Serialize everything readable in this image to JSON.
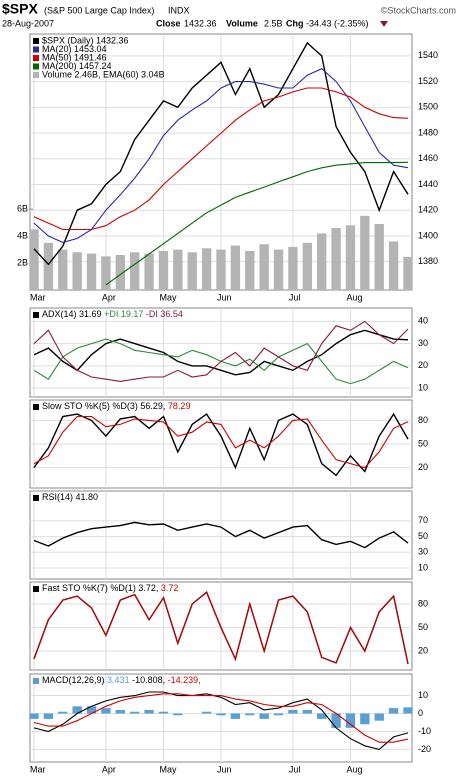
{
  "header": {
    "symbol": "$SPX",
    "name": "(S&P 500 Large Cap Index)",
    "exchange": "INDX",
    "credit": "©StockCharts.com",
    "date": "28-Aug-2007",
    "close_label": "Close",
    "close": "1432.36",
    "volume_label": "Volume",
    "volume": "2.5B",
    "chg_label": "Chg",
    "chg": "-34.43 (-2.35%)"
  },
  "chart_data": [
    {
      "type": "line",
      "grid": true,
      "categories": [
        "Mar",
        null,
        null,
        null,
        null,
        "Apr",
        null,
        null,
        null,
        "May",
        null,
        null,
        null,
        "Jun",
        null,
        null,
        null,
        null,
        "Jul",
        null,
        null,
        null,
        "Aug",
        null,
        null,
        null,
        null
      ],
      "ylim": [
        1358,
        1557
      ],
      "yticks": [
        1380,
        1400,
        1420,
        1440,
        1460,
        1480,
        1500,
        1520,
        1540
      ],
      "y2lim": [
        0,
        19
      ],
      "y2ticks": [
        {
          "value": 2,
          "label": "2B"
        },
        {
          "value": 4,
          "label": "4B"
        },
        {
          "value": 6,
          "label": "6B"
        }
      ],
      "series": [
        {
          "name": "$SPX (Daily) 1432.36",
          "color": "#000000",
          "values": [
            1390,
            1378,
            1392,
            1420,
            1425,
            1440,
            1450,
            1475,
            1490,
            1505,
            1500,
            1515,
            1525,
            1535,
            1510,
            1530,
            1500,
            1510,
            1530,
            1550,
            1540,
            1485,
            1465,
            1450,
            1420,
            1450,
            1432.36
          ]
        },
        {
          "name": "MA(20) 1453.04",
          "color": "#2a2aa8",
          "values": [
            1410,
            1400,
            1395,
            1398,
            1405,
            1420,
            1432,
            1445,
            1460,
            1478,
            1490,
            1498,
            1505,
            1515,
            1520,
            1520,
            1518,
            1515,
            1515,
            1525,
            1530,
            1520,
            1505,
            1485,
            1465,
            1455,
            1453.04
          ]
        },
        {
          "name": "MA(50) 1491.46",
          "color": "#cc0000",
          "values": [
            1415,
            1410,
            1405,
            1405,
            1405,
            1408,
            1415,
            1420,
            1428,
            1440,
            1450,
            1460,
            1470,
            1480,
            1490,
            1498,
            1505,
            1508,
            1512,
            1515,
            1515,
            1512,
            1508,
            1500,
            1495,
            1492,
            1491.46
          ]
        },
        {
          "name": "MA(200) 1457.24",
          "color": "#006600",
          "values": [
            null,
            null,
            null,
            null,
            null,
            1362,
            1370,
            1378,
            1386,
            1394,
            1402,
            1410,
            1418,
            1424,
            1430,
            1434,
            1438,
            1442,
            1446,
            1450,
            1453,
            1455,
            1456,
            1457,
            1457,
            1457,
            1457.24
          ]
        },
        {
          "name": "Volume 2.46B, EMA(60) 3.04B",
          "color": "#b4b4b4",
          "type": "bar",
          "axis": "y2",
          "values": [
            4.5,
            3.5,
            3.0,
            2.8,
            2.7,
            2.5,
            2.6,
            2.8,
            2.7,
            2.9,
            3.0,
            2.8,
            3.1,
            3.0,
            3.3,
            2.9,
            3.4,
            3.0,
            3.2,
            3.5,
            4.2,
            4.6,
            4.8,
            5.5,
            4.9,
            3.6,
            2.46
          ]
        }
      ]
    },
    {
      "type": "line",
      "grid": true,
      "ylim": [
        6,
        46
      ],
      "yticks": [
        10,
        20,
        30,
        40
      ],
      "series": [
        {
          "name": "ADX(14) 31.69",
          "color": "#000000",
          "values": [
            25,
            28,
            22,
            18,
            25,
            30,
            32,
            30,
            28,
            26,
            22,
            20,
            20,
            18,
            16,
            17,
            22,
            20,
            18,
            22,
            25,
            30,
            34,
            36,
            34,
            32,
            31.69
          ]
        },
        {
          "name": "+DI 19.17",
          "color": "#2e8b3e",
          "values": [
            18,
            14,
            24,
            28,
            30,
            32,
            30,
            27,
            26,
            25,
            24,
            27,
            25,
            22,
            20,
            23,
            18,
            24,
            27,
            30,
            22,
            14,
            12,
            14,
            18,
            22,
            19.17
          ]
        },
        {
          "name": "-DI 36.54",
          "color": "#8b1a3a",
          "values": [
            30,
            36,
            24,
            18,
            15,
            14,
            13,
            14,
            15,
            15,
            18,
            15,
            16,
            22,
            26,
            20,
            28,
            24,
            20,
            18,
            30,
            38,
            36,
            40,
            34,
            30,
            36.54
          ]
        }
      ]
    },
    {
      "type": "line",
      "grid": true,
      "title": "Slow STO %K(5) %D(3)",
      "ylim": [
        -6,
        106
      ],
      "yticks": [
        20,
        50,
        80
      ],
      "series": [
        {
          "name": "56.29,",
          "color": "#000000",
          "values": [
            20,
            45,
            85,
            88,
            80,
            60,
            82,
            85,
            70,
            85,
            40,
            75,
            88,
            60,
            20,
            70,
            30,
            80,
            88,
            75,
            25,
            10,
            35,
            15,
            60,
            88,
            56.29
          ]
        },
        {
          "name": "78.29",
          "color": "#d00000",
          "values": [
            25,
            35,
            65,
            85,
            85,
            72,
            75,
            82,
            80,
            78,
            60,
            65,
            78,
            75,
            45,
            55,
            45,
            60,
            80,
            82,
            55,
            30,
            25,
            20,
            40,
            70,
            78.29
          ]
        }
      ]
    },
    {
      "type": "line",
      "grid": true,
      "title": "RSI(14)",
      "ylim": [
        -4,
        108
      ],
      "yticks": [
        10,
        30,
        50,
        70
      ],
      "series": [
        {
          "name": "41.80",
          "color": "#000000",
          "values": [
            45,
            38,
            48,
            55,
            60,
            62,
            64,
            68,
            65,
            66,
            58,
            62,
            66,
            62,
            50,
            58,
            48,
            55,
            62,
            64,
            46,
            40,
            44,
            36,
            48,
            56,
            41.8
          ]
        }
      ]
    },
    {
      "type": "line",
      "grid": true,
      "title": "Fast STO %K(7) %D(1)",
      "ylim": [
        -4,
        108
      ],
      "yticks": [
        20,
        50,
        80
      ],
      "series": [
        {
          "name": "3.72,",
          "color": "#000000",
          "values": [
            10,
            60,
            85,
            90,
            75,
            40,
            85,
            92,
            60,
            88,
            30,
            80,
            95,
            50,
            10,
            80,
            20,
            85,
            90,
            70,
            12,
            5,
            50,
            20,
            70,
            90,
            3.72
          ]
        },
        {
          "name": "3.72",
          "color": "#d00000",
          "values": [
            10,
            60,
            85,
            90,
            75,
            40,
            85,
            92,
            60,
            88,
            30,
            80,
            95,
            50,
            10,
            80,
            20,
            85,
            90,
            70,
            12,
            5,
            50,
            20,
            70,
            90,
            3.72
          ]
        }
      ]
    },
    {
      "type": "line",
      "grid": true,
      "title": "MACD(12,26,9)",
      "ylim": [
        -27,
        22
      ],
      "yticks": [
        -20,
        -10,
        0,
        10
      ],
      "categories": [
        "Mar",
        null,
        null,
        null,
        null,
        "Apr",
        null,
        null,
        null,
        "May",
        null,
        null,
        null,
        "Jun",
        null,
        null,
        null,
        null,
        "Jul",
        null,
        null,
        null,
        "Aug",
        null,
        null,
        null,
        null
      ],
      "series": [
        {
          "name": "3.431",
          "color": "#5a9fd4",
          "type": "bar",
          "values": [
            -3,
            -3,
            1,
            4,
            4,
            3,
            2,
            1,
            2,
            1,
            -1,
            0,
            1,
            -1,
            -3,
            -1,
            -3,
            -1,
            2,
            2,
            -3,
            -8,
            -8,
            -6,
            -4,
            3,
            3.431
          ]
        },
        {
          "name": "-10.808,",
          "color": "#000000",
          "values": [
            -8,
            -10,
            -6,
            0,
            4,
            7,
            9,
            10,
            12,
            12,
            10,
            10,
            11,
            9,
            5,
            6,
            2,
            3,
            6,
            8,
            2,
            -8,
            -14,
            -18,
            -20,
            -13,
            -10.808
          ]
        },
        {
          "name": "-14.239,",
          "color": "#d00000",
          "values": [
            -5,
            -7,
            -7,
            -4,
            0,
            4,
            7,
            9,
            10,
            11,
            11,
            10,
            10,
            10,
            8,
            7,
            5,
            4,
            4,
            6,
            5,
            0,
            -6,
            -12,
            -16,
            -16,
            -14.239
          ]
        }
      ]
    }
  ]
}
